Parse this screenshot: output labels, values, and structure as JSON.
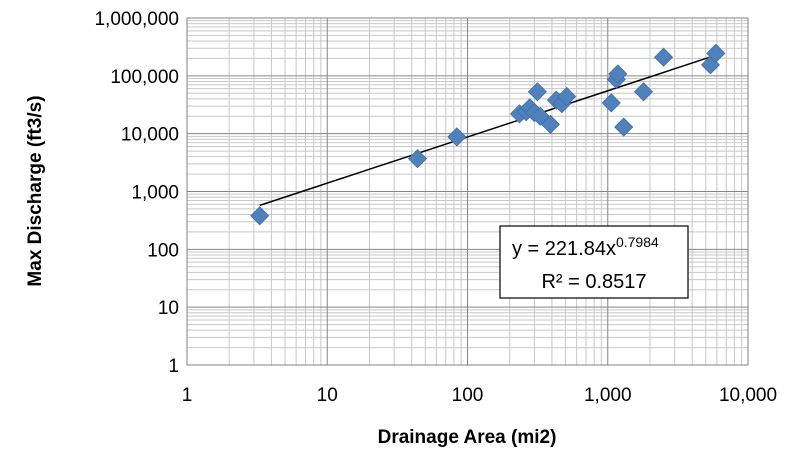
{
  "chart_data": {
    "type": "scatter",
    "x_scale": "log",
    "y_scale": "log",
    "xlabel": "Drainage Area (mi2)",
    "ylabel": "Max Discharge (ft3/s)",
    "xlim": [
      1,
      10000
    ],
    "ylim": [
      1,
      1000000
    ],
    "x_ticks": [
      1,
      10,
      100,
      1000,
      10000
    ],
    "x_tick_labels": [
      "1",
      "10",
      "100",
      "1,000",
      "10,000"
    ],
    "y_ticks": [
      1,
      10,
      100,
      1000,
      10000,
      100000,
      1000000
    ],
    "y_tick_labels": [
      "1",
      "10",
      "100",
      "1,000",
      "10,000",
      "100,000",
      "1,000,000"
    ],
    "grid": true,
    "marker_color": "#4f81bd",
    "points": [
      {
        "x": 3.3,
        "y": 380
      },
      {
        "x": 44,
        "y": 3700
      },
      {
        "x": 84,
        "y": 8800
      },
      {
        "x": 235,
        "y": 22000
      },
      {
        "x": 262,
        "y": 24000
      },
      {
        "x": 278,
        "y": 28000
      },
      {
        "x": 300,
        "y": 23000
      },
      {
        "x": 315,
        "y": 53000
      },
      {
        "x": 330,
        "y": 20000
      },
      {
        "x": 390,
        "y": 14500
      },
      {
        "x": 430,
        "y": 38000
      },
      {
        "x": 470,
        "y": 33000
      },
      {
        "x": 510,
        "y": 44000
      },
      {
        "x": 1060,
        "y": 34000
      },
      {
        "x": 1150,
        "y": 87000
      },
      {
        "x": 1180,
        "y": 108000
      },
      {
        "x": 1300,
        "y": 13000
      },
      {
        "x": 1800,
        "y": 53000
      },
      {
        "x": 2500,
        "y": 210000
      },
      {
        "x": 5400,
        "y": 155000
      },
      {
        "x": 5900,
        "y": 245000
      }
    ],
    "trendline": {
      "type": "power",
      "coefficient": 221.84,
      "exponent": 0.7984,
      "x_range": [
        3.3,
        5900
      ],
      "equation_prefix": "y = 221.84x",
      "equation_exponent": "0.7984",
      "r_squared_text": "R² = 0.8517"
    }
  }
}
